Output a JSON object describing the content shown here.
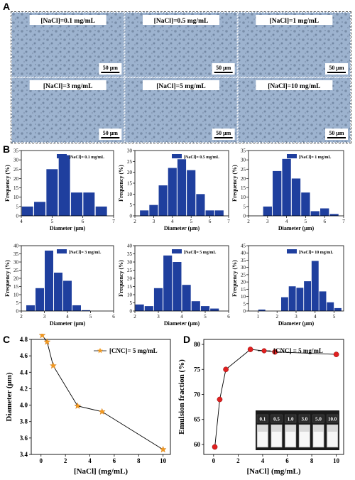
{
  "panel_labels": {
    "a": "A",
    "b": "B",
    "c": "C",
    "d": "D"
  },
  "micrographs": [
    {
      "label": "[NaCl]=0.1 mg/mL",
      "scale": "50 μm"
    },
    {
      "label": "[NaCl]=0.5 mg/mL",
      "scale": "50 μm"
    },
    {
      "label": "[NaCl]=1 mg/mL",
      "scale": "50 μm"
    },
    {
      "label": "[NaCl]=3 mg/mL",
      "scale": "50 μm"
    },
    {
      "label": "[NaCl]=5 mg/mL",
      "scale": "50 μm"
    },
    {
      "label": "[NaCl]=10 mg/mL",
      "scale": "50 μm"
    }
  ],
  "colors": {
    "bar": "#1f3f9e",
    "star": "#f39a1f",
    "ball": "#e02020",
    "micro_bg": "#9db3cf"
  },
  "chart_data": [
    {
      "type": "bar",
      "legend": "[NaCl]= 0.1 mg/mL",
      "xlabel": "Diameter (μm)",
      "ylabel": "Frequency (%)",
      "xlim": [
        4,
        7
      ],
      "ylim": [
        0,
        35
      ],
      "xticks": [
        4,
        5,
        6,
        7
      ],
      "yticks": [
        0,
        5,
        10,
        15,
        20,
        25,
        30,
        35
      ],
      "binwidth": 0.4,
      "x": [
        4.2,
        4.6,
        5.0,
        5.4,
        5.8,
        6.2,
        6.6
      ],
      "values": [
        5,
        7.5,
        25,
        32.5,
        12.5,
        12.5,
        5
      ]
    },
    {
      "type": "bar",
      "legend": "[NaCl]= 0.5 mg/mL",
      "xlabel": "Diameter (μm)",
      "ylabel": "Frequency (%)",
      "xlim": [
        2,
        7
      ],
      "ylim": [
        0,
        30
      ],
      "xticks": [
        2,
        3,
        4,
        5,
        6,
        7
      ],
      "yticks": [
        0,
        5,
        10,
        15,
        20,
        25,
        30
      ],
      "binwidth": 0.5,
      "x": [
        2.5,
        3.0,
        3.5,
        4.0,
        4.5,
        5.0,
        5.5,
        6.0,
        6.5
      ],
      "values": [
        2.5,
        5,
        14,
        22,
        26,
        21,
        10,
        2.5,
        2.5
      ]
    },
    {
      "type": "bar",
      "legend": "[NaCl]= 1 mg/mL",
      "xlabel": "Diameter (μm)",
      "ylabel": "Frequency (%)",
      "xlim": [
        2,
        7
      ],
      "ylim": [
        0,
        35
      ],
      "xticks": [
        2,
        3,
        4,
        5,
        6,
        7
      ],
      "yticks": [
        0,
        5,
        10,
        15,
        20,
        25,
        30,
        35
      ],
      "binwidth": 0.5,
      "x": [
        3.0,
        3.5,
        4.0,
        4.5,
        5.0,
        5.5,
        6.0,
        6.5
      ],
      "values": [
        5,
        24,
        30.5,
        20,
        12.5,
        2.5,
        4,
        1
      ]
    },
    {
      "type": "bar",
      "legend": "[NaCl]= 3 mg/mL",
      "xlabel": "Diameter (μm)",
      "ylabel": "Frequency (%)",
      "xlim": [
        2,
        6
      ],
      "ylim": [
        0,
        40
      ],
      "xticks": [
        2,
        3,
        4,
        5,
        6
      ],
      "yticks": [
        0,
        5,
        10,
        15,
        20,
        25,
        30,
        35,
        40
      ],
      "binwidth": 0.4,
      "x": [
        2.4,
        2.8,
        3.2,
        3.6,
        4.0,
        4.4,
        4.8,
        5.2,
        5.6
      ],
      "values": [
        3.5,
        14,
        37,
        23.5,
        18.5,
        3.5,
        0.5,
        0,
        0
      ]
    },
    {
      "type": "bar",
      "legend": "[NaCl]= 5 mg/mL",
      "xlabel": "Diameter (μm)",
      "ylabel": "Frequency (%)",
      "xlim": [
        2,
        6
      ],
      "ylim": [
        0,
        40
      ],
      "xticks": [
        2,
        3,
        4,
        5,
        6
      ],
      "yticks": [
        0,
        5,
        10,
        15,
        20,
        25,
        30,
        35,
        40
      ],
      "binwidth": 0.4,
      "x": [
        2.2,
        2.6,
        3.0,
        3.4,
        3.8,
        4.2,
        4.6,
        5.0,
        5.4
      ],
      "values": [
        4,
        3,
        14,
        34,
        30,
        16,
        6,
        3,
        1.5
      ]
    },
    {
      "type": "bar",
      "legend": "[NaCl]= 10 mg/mL",
      "xlabel": "Diameter (μm)",
      "ylabel": "Frequency (%)",
      "xlim": [
        0.5,
        5.5
      ],
      "ylim": [
        0,
        45
      ],
      "xticks": [
        1,
        2,
        3,
        4,
        5
      ],
      "yticks": [
        0,
        5,
        10,
        15,
        20,
        25,
        30,
        35,
        40,
        45
      ],
      "binwidth": 0.4,
      "x": [
        1.2,
        2.0,
        2.4,
        2.8,
        3.2,
        3.6,
        4.0,
        4.4,
        4.8,
        5.2
      ],
      "values": [
        1,
        0,
        9.5,
        17,
        16,
        20.5,
        34.5,
        13.5,
        6,
        2
      ]
    },
    {
      "type": "line",
      "legend": "[CNC]= 5 mg/mL",
      "xlabel": "[NaCl] (mg/mL)",
      "ylabel": "Diameter (μm)",
      "xlim": [
        -0.8,
        10.6
      ],
      "ylim": [
        3.4,
        4.8
      ],
      "xticks": [
        0,
        2,
        4,
        6,
        8,
        10
      ],
      "yticks": [
        3.4,
        3.6,
        3.8,
        4.0,
        4.2,
        4.4,
        4.6,
        4.8
      ],
      "x": [
        0.1,
        0.5,
        1,
        3,
        5,
        10
      ],
      "values": [
        4.85,
        4.77,
        4.48,
        3.99,
        3.92,
        3.46
      ]
    },
    {
      "type": "line",
      "legend": "[CNC] = 5 mg/mL",
      "xlabel": "[NaCl] (mg/mL)",
      "ylabel": "Emulsion fraction (%)",
      "xlim": [
        -0.8,
        10.6
      ],
      "ylim": [
        58,
        81
      ],
      "xticks": [
        0,
        2,
        4,
        6,
        8,
        10
      ],
      "yticks": [
        60,
        65,
        70,
        75,
        80
      ],
      "x": [
        0.1,
        0.5,
        1,
        3,
        5,
        10
      ],
      "values": [
        59.5,
        69,
        75,
        79,
        78.5,
        78
      ],
      "inset_labels": [
        "0.1",
        "0.5",
        "1.0",
        "3.0",
        "5.0",
        "10.0"
      ]
    }
  ]
}
